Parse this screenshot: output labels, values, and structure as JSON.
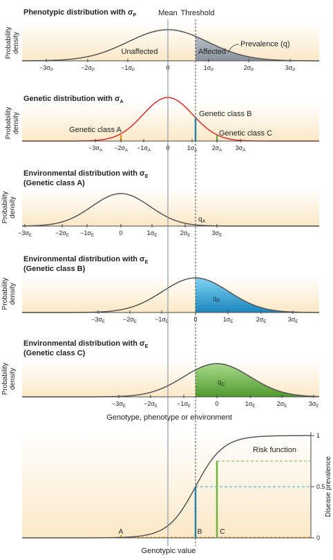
{
  "header": {
    "mean": "Mean",
    "threshold": "Threshold"
  },
  "panel1": {
    "title": "Phenotypic distribution with σ",
    "title_sub": "P",
    "ylabel": [
      "Probability",
      "density"
    ],
    "unaffected": "Unaffected",
    "affected": "Affected",
    "prevalence": "Prevalence (q)",
    "ticks": [
      "−3σ",
      "−2σ",
      "−1σ",
      "0",
      "1σ",
      "2σ",
      "3σ"
    ],
    "tick_sub": "P"
  },
  "panel2": {
    "title": "Genetic distribution with σ",
    "title_sub": "A",
    "ylabel": [
      "Probability",
      "density"
    ],
    "class_a": "Genetic class A",
    "class_b": "Genetic class B",
    "class_c": "Genetic class C",
    "ticks": [
      "−3σ",
      "−2σ",
      "−1σ",
      "0",
      "1σ",
      "2σ",
      "3σ"
    ],
    "tick_sub": "A"
  },
  "panel3": {
    "title": "Environmental distribution with σ",
    "title_sub": "E",
    "subtitle": "(Genetic class A)",
    "ylabel": [
      "Probability",
      "density"
    ],
    "q_label": "q",
    "q_sub": "A",
    "ticks": [
      "−3σ",
      "−2σ",
      "−1σ",
      "0",
      "1σ",
      "2σ",
      "3σ"
    ],
    "tick_sub": "E"
  },
  "panel4": {
    "title": "Environmental distribution with σ",
    "title_sub": "E",
    "subtitle": "(Genetic class B)",
    "ylabel": [
      "Probability",
      "density"
    ],
    "q_label": "q",
    "q_sub": "B",
    "ticks": [
      "−3σ",
      "−2σ",
      "−1σ",
      "0",
      "1σ",
      "2σ",
      "3σ"
    ],
    "tick_sub": "E"
  },
  "panel5": {
    "title": "Environmental distribution with σ",
    "title_sub": "E",
    "subtitle": "(Genetic class C)",
    "ylabel": [
      "Probability",
      "density"
    ],
    "q_label": "q",
    "q_sub": "C",
    "ticks": [
      "−3σ",
      "−2σ",
      "−1σ",
      "0",
      "1σ",
      "2σ",
      "3σ"
    ],
    "tick_sub": "E",
    "xlabel": "Genotype, phenotype or environment"
  },
  "panel6": {
    "risk_label": "Risk function",
    "ylabel": "Disease prevalence",
    "yticks": [
      "0",
      "0.5",
      "1"
    ],
    "point_a": "A",
    "point_b": "B",
    "point_c": "C",
    "xlabel": "Genotypic value"
  },
  "colors": {
    "background_fill": "#fdf0d8",
    "curve": "#555555",
    "genetic_curve": "#d42a2a",
    "affected_fill": "#9aa3ad",
    "class_a": "#e69a1c",
    "class_b": "#1e8fc4",
    "class_c": "#6cb33f",
    "mean_line": "#7a8aa0",
    "threshold_line": "#555555",
    "dashed_b": "#3aa0d0",
    "dashed_c": "#6cb33f"
  }
}
